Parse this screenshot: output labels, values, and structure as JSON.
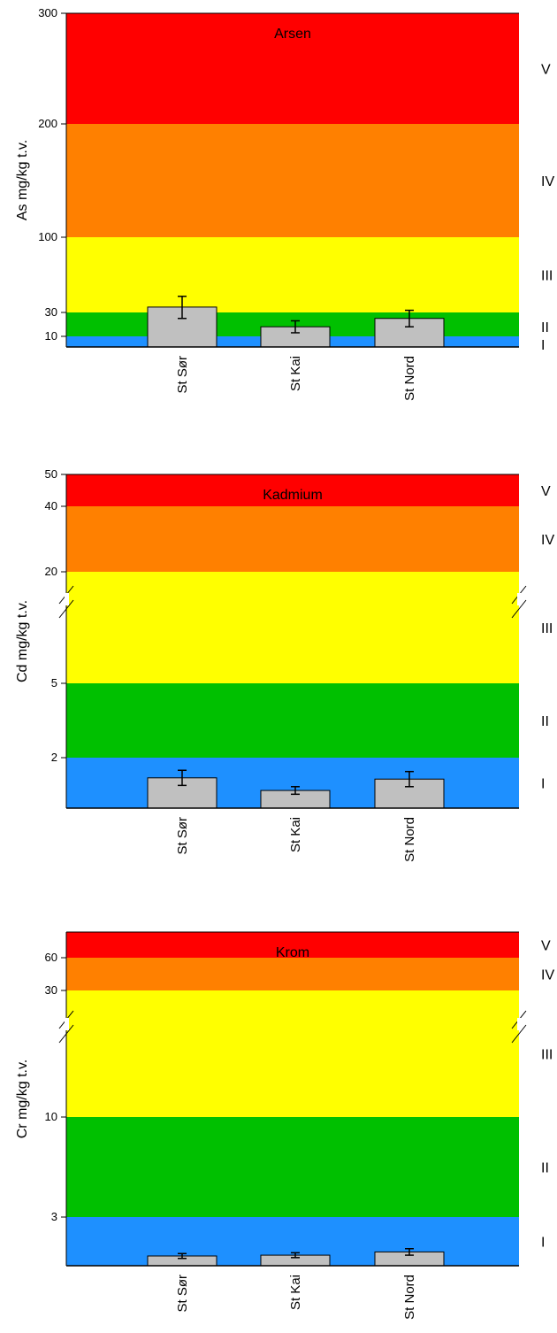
{
  "chart_data": [
    {
      "type": "bar",
      "title": "Arsen",
      "ylabel": "As mg/kg t.v.",
      "categories": [
        "St Sør",
        "St Kai",
        "St Nord"
      ],
      "values": [
        35,
        18,
        25
      ],
      "errors": [
        10,
        5,
        7
      ],
      "yticks": [
        10,
        30,
        100,
        200,
        300
      ],
      "ylim": [
        0,
        300
      ],
      "class_bands": [
        {
          "label": "I",
          "from": 0,
          "to": 10,
          "color": "#1e90ff"
        },
        {
          "label": "II",
          "from": 10,
          "to": 30,
          "color": "#00c000"
        },
        {
          "label": "III",
          "from": 30,
          "to": 100,
          "color": "#ffff00"
        },
        {
          "label": "IV",
          "from": 100,
          "to": 200,
          "color": "#ff8000"
        },
        {
          "label": "V",
          "from": 200,
          "to": 300,
          "color": "#ff0000"
        }
      ],
      "bar_color": "#c0c0c0",
      "axis_break": false
    },
    {
      "type": "bar",
      "title": "Kadmium",
      "ylabel": "Cd mg/kg t.v.",
      "categories": [
        "St Sør",
        "St Kai",
        "St Nord"
      ],
      "values": [
        1.2,
        0.7,
        1.15
      ],
      "errors": [
        0.3,
        0.15,
        0.3
      ],
      "yticks": [
        2,
        5,
        20,
        40,
        50
      ],
      "class_bands": [
        {
          "label": "I",
          "from": 0,
          "to": 2,
          "color": "#1e90ff"
        },
        {
          "label": "II",
          "from": 2,
          "to": 5,
          "color": "#00c000"
        },
        {
          "label": "III",
          "from": 5,
          "to": 20,
          "color": "#ffff00"
        },
        {
          "label": "IV",
          "from": 20,
          "to": 40,
          "color": "#ff8000"
        },
        {
          "label": "V",
          "from": 40,
          "to": 50,
          "color": "#ff0000"
        }
      ],
      "bar_color": "#c0c0c0",
      "axis_break": true
    },
    {
      "type": "bar",
      "title": "Krom",
      "ylabel": "Cr mg/kg t.v.",
      "categories": [
        "St Sør",
        "St Kai",
        "St Nord"
      ],
      "values": [
        0.6,
        0.65,
        0.85
      ],
      "errors": [
        0.15,
        0.15,
        0.2
      ],
      "yticks": [
        3,
        10,
        30,
        60
      ],
      "class_bands": [
        {
          "label": "I",
          "from": 0,
          "to": 3,
          "color": "#1e90ff"
        },
        {
          "label": "II",
          "from": 3,
          "to": 10,
          "color": "#00c000"
        },
        {
          "label": "III",
          "from": 10,
          "to": 30,
          "color": "#ffff00"
        },
        {
          "label": "IV",
          "from": 30,
          "to": 60,
          "color": "#ff8000"
        },
        {
          "label": "V",
          "from": 60,
          "to": 70,
          "color": "#ff0000"
        }
      ],
      "bar_color": "#c0c0c0",
      "axis_break": true
    }
  ]
}
